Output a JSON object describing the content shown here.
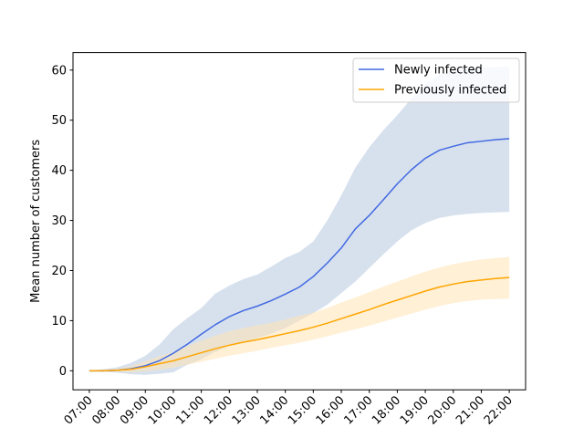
{
  "chart_data": {
    "type": "line",
    "title": "",
    "xlabel": "",
    "ylabel": "Mean number of customers",
    "x_ticks": [
      "07:00",
      "08:00",
      "09:00",
      "10:00",
      "11:00",
      "12:00",
      "13:00",
      "14:00",
      "15:00",
      "16:00",
      "17:00",
      "18:00",
      "19:00",
      "20:00",
      "21:00",
      "22:00"
    ],
    "y_ticks": [
      0,
      10,
      20,
      30,
      40,
      50,
      60
    ],
    "xlim": [
      "06:25",
      "22:35"
    ],
    "ylim": [
      -3.8,
      63.5
    ],
    "grid": false,
    "legend_position": "top-right",
    "x": [
      "07:00",
      "07:30",
      "08:00",
      "08:30",
      "09:00",
      "09:30",
      "10:00",
      "10:30",
      "11:00",
      "11:30",
      "12:00",
      "12:30",
      "13:00",
      "13:30",
      "14:00",
      "14:30",
      "15:00",
      "15:30",
      "16:00",
      "16:30",
      "17:00",
      "17:30",
      "18:00",
      "18:30",
      "19:00",
      "19:30",
      "20:00",
      "20:30",
      "21:00",
      "21:30",
      "22:00"
    ],
    "series": [
      {
        "name": "Newly infected",
        "color": "#4169e1",
        "band_color": "#b0c4de",
        "values": [
          0,
          0,
          0.1,
          0.4,
          1.0,
          2.0,
          3.5,
          5.3,
          7.3,
          9.2,
          10.8,
          12.0,
          12.9,
          14.0,
          15.3,
          16.7,
          18.8,
          21.5,
          24.5,
          28.3,
          31.0,
          34.1,
          37.3,
          40.1,
          42.4,
          44.0,
          44.8,
          45.5,
          45.8,
          46.1,
          46.3
        ],
        "lower": [
          0,
          -0.2,
          -0.4,
          -0.7,
          -0.8,
          -0.6,
          -0.3,
          1.2,
          2.3,
          3.8,
          5.0,
          5.8,
          6.5,
          7.4,
          8.5,
          10.0,
          11.5,
          13.2,
          15.5,
          17.8,
          20.5,
          23.2,
          25.8,
          28.0,
          29.5,
          30.5,
          31.0,
          31.3,
          31.5,
          31.6,
          31.7
        ],
        "upper": [
          0,
          0.3,
          0.7,
          1.6,
          3.0,
          5.2,
          8.3,
          10.5,
          12.5,
          15.4,
          17.0,
          18.3,
          19.2,
          20.8,
          22.5,
          23.7,
          25.8,
          30.0,
          35.0,
          40.5,
          44.6,
          48.0,
          51.0,
          54.3,
          57.2,
          59.0,
          60.0,
          60.3,
          60.5,
          60.6,
          60.7
        ]
      },
      {
        "name": "Previously infected",
        "color": "#ffa500",
        "band_color": "#ffe4b5",
        "values": [
          0,
          0,
          0.1,
          0.3,
          0.8,
          1.4,
          2.0,
          2.8,
          3.6,
          4.4,
          5.1,
          5.7,
          6.2,
          6.8,
          7.4,
          8.0,
          8.7,
          9.5,
          10.4,
          11.3,
          12.2,
          13.2,
          14.1,
          15.0,
          15.9,
          16.7,
          17.3,
          17.8,
          18.1,
          18.4,
          18.6
        ],
        "lower": [
          0,
          -0.1,
          -0.2,
          -0.3,
          -0.1,
          0.2,
          0.6,
          1.2,
          1.8,
          2.4,
          3.0,
          3.5,
          4.0,
          4.6,
          5.1,
          5.6,
          6.2,
          6.9,
          7.6,
          8.3,
          9.0,
          9.8,
          10.6,
          11.4,
          12.2,
          12.9,
          13.5,
          13.9,
          14.2,
          14.3,
          14.4
        ],
        "upper": [
          0,
          0.2,
          0.4,
          1.0,
          1.9,
          2.9,
          3.7,
          4.9,
          6.0,
          7.0,
          7.9,
          8.5,
          9.1,
          9.6,
          10.2,
          11.0,
          11.6,
          12.5,
          13.6,
          14.6,
          15.7,
          16.8,
          17.8,
          18.8,
          19.8,
          20.6,
          21.3,
          21.8,
          22.2,
          22.5,
          22.7
        ]
      }
    ]
  }
}
